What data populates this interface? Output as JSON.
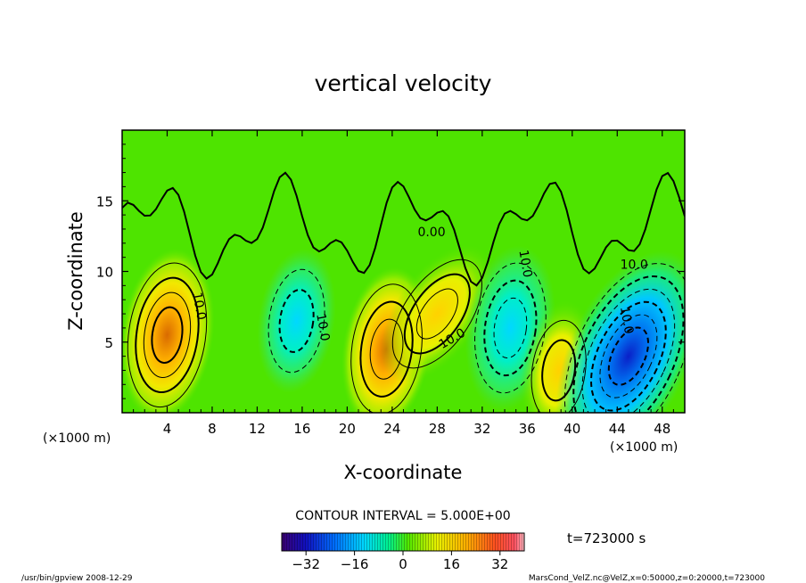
{
  "chart_data": {
    "type": "heatmap",
    "title": "vertical velocity",
    "xlabel": "X-coordinate",
    "ylabel": "Z-coordinate",
    "x_unit": "(×1000 m)",
    "y_unit": "(×1000 m)",
    "xlim": [
      0,
      50
    ],
    "ylim": [
      0,
      20
    ],
    "x_ticks": [
      4,
      8,
      12,
      16,
      20,
      24,
      28,
      32,
      36,
      40,
      44,
      48
    ],
    "y_ticks": [
      5,
      10,
      15
    ],
    "contour_interval_text": "CONTOUR INTERVAL = 5.000E+00",
    "contour_labels": [
      "10.0",
      "10.0",
      "0.00",
      "10.0",
      "10.0",
      "10.0",
      "10.0"
    ],
    "time_label": "t=723000 s",
    "colorbar": {
      "min": -40,
      "max": 40,
      "ticks": [
        -32,
        -16,
        0,
        16,
        32
      ]
    },
    "features": [
      {
        "sign": "up",
        "x": 4.0,
        "z": 5.5,
        "peak": 20
      },
      {
        "sign": "down",
        "x": 15.5,
        "z": 6.5,
        "peak": -13
      },
      {
        "sign": "up",
        "x": 23.5,
        "z": 4.5,
        "peak": 18
      },
      {
        "sign": "up",
        "x": 28.0,
        "z": 7.0,
        "peak": 16
      },
      {
        "sign": "down",
        "x": 34.5,
        "z": 6.0,
        "peak": -18
      },
      {
        "sign": "up",
        "x": 38.8,
        "z": 3.0,
        "peak": 12
      },
      {
        "sign": "down",
        "x": 45.0,
        "z": 4.0,
        "peak": -32
      }
    ]
  },
  "footer": {
    "program": "/usr/bin/gpview  2008-12-29",
    "source": "MarsCond_VelZ.nc@VelZ,x=0:50000,z=0:20000,t=723000"
  }
}
